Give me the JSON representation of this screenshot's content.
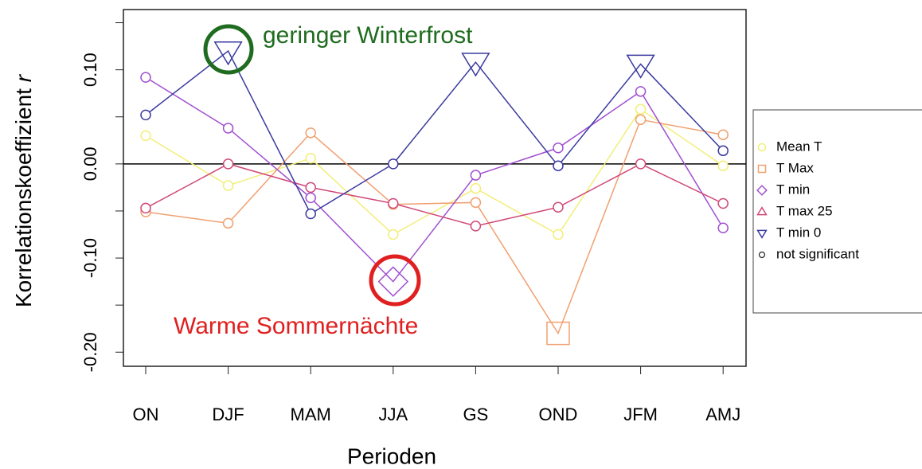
{
  "chart_data": {
    "type": "line",
    "x_label": "Perioden",
    "y_label": "Korrelationskoeffizient",
    "y_label_symbol": "r",
    "categories": [
      "ON",
      "DJF",
      "MAM",
      "JJA",
      "GS",
      "OND",
      "JFM",
      "AMJ"
    ],
    "ylim": [
      -0.215,
      0.164
    ],
    "yticks": [
      {
        "value": -0.2,
        "label": "-0.20"
      },
      {
        "value": -0.1,
        "label": "-0.10"
      },
      {
        "value": 0,
        "label": "0.00"
      },
      {
        "value": 0.1,
        "label": "0.10"
      }
    ],
    "yminorticks": [
      -0.15,
      -0.05,
      0.05,
      0.15
    ],
    "hline": 0,
    "series": [
      {
        "name": "Mean T",
        "color": "#f2ee78",
        "marker": "circle",
        "values": [
          0.03,
          -0.023,
          0.006,
          -0.075,
          -0.026,
          -0.075,
          0.058,
          -0.002
        ],
        "significant": [
          false,
          false,
          false,
          false,
          false,
          false,
          false,
          false
        ]
      },
      {
        "name": "T Max",
        "color": "#f0a070",
        "marker": "square",
        "values": [
          -0.051,
          -0.063,
          0.033,
          -0.043,
          -0.041,
          -0.18,
          0.047,
          0.031
        ],
        "significant": [
          false,
          false,
          false,
          false,
          false,
          true,
          false,
          false
        ]
      },
      {
        "name": "T min",
        "color": "#a050d0",
        "marker": "diamond",
        "values": [
          0.092,
          0.038,
          -0.036,
          -0.125,
          -0.012,
          0.017,
          0.077,
          -0.068
        ],
        "significant": [
          false,
          false,
          false,
          true,
          false,
          false,
          false,
          false
        ]
      },
      {
        "name": "T max 25",
        "color": "#d04878",
        "marker": "triangle",
        "values": [
          -0.047,
          0.0,
          -0.025,
          -0.042,
          -0.066,
          -0.046,
          0.0,
          -0.042
        ],
        "significant": [
          false,
          false,
          false,
          false,
          false,
          false,
          false,
          false
        ]
      },
      {
        "name": "T min 0",
        "color": "#3a3aa0",
        "marker": "triangle-down",
        "values": [
          0.052,
          0.12,
          -0.053,
          0.0,
          0.108,
          -0.002,
          0.106,
          0.014
        ],
        "significant": [
          false,
          true,
          false,
          false,
          true,
          false,
          true,
          false
        ]
      }
    ],
    "legend_extra": "not significant",
    "legend": "right",
    "annotations": [
      "geringer Winterfrost",
      "Warme Sommernächte"
    ]
  }
}
